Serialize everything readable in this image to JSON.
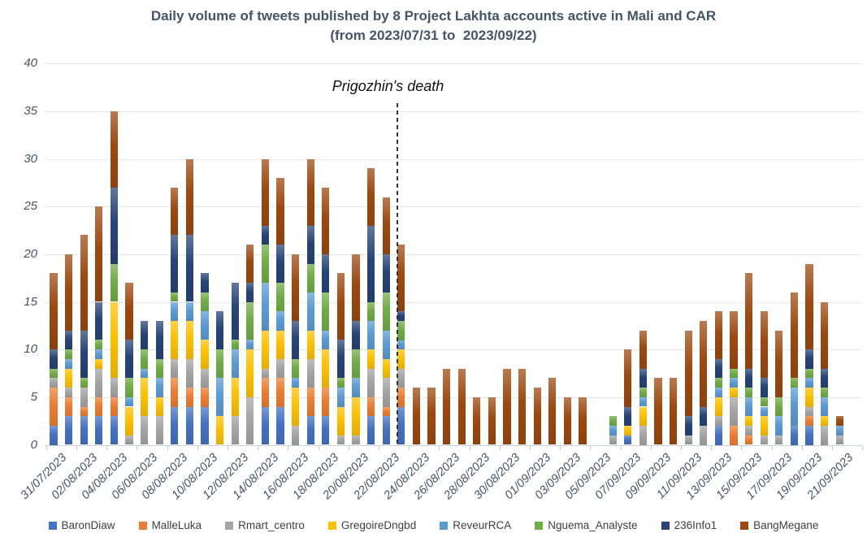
{
  "title": {
    "line1": "Daily volume of tweets published by 8 Project Lakhta accounts active in Mali and CAR",
    "line2": "(from 2023/07/31 to  2023/09/22)"
  },
  "annotation": {
    "text": "Prigozhin's death"
  },
  "chart_data": {
    "type": "bar",
    "stacked": true,
    "title": "Daily volume of tweets published by 8 Project Lakhta accounts active in Mali and CAR (from 2023/07/31 to 2023/09/22)",
    "ylabel": "",
    "xlabel": "",
    "ylim": [
      0,
      40
    ],
    "yticks": [
      0,
      5,
      10,
      15,
      20,
      25,
      30,
      35,
      40
    ],
    "grid": true,
    "legend_position": "bottom",
    "xtick_every": 2,
    "annotation": {
      "text": "Prigozhin's death",
      "after_category": "22/08/2023"
    },
    "categories": [
      "31/07/2023",
      "01/08/2023",
      "02/08/2023",
      "03/08/2023",
      "04/08/2023",
      "05/08/2023",
      "06/08/2023",
      "07/08/2023",
      "08/08/2023",
      "09/08/2023",
      "10/08/2023",
      "11/08/2023",
      "12/08/2023",
      "13/08/2023",
      "14/08/2023",
      "15/08/2023",
      "16/08/2023",
      "17/08/2023",
      "18/08/2023",
      "19/08/2023",
      "20/08/2023",
      "21/08/2023",
      "22/08/2023",
      "23/08/2023",
      "24/08/2023",
      "25/08/2023",
      "26/08/2023",
      "27/08/2023",
      "28/08/2023",
      "29/08/2023",
      "30/08/2023",
      "31/08/2023",
      "01/09/2023",
      "02/09/2023",
      "03/09/2023",
      "04/09/2023",
      "05/09/2023",
      "06/09/2023",
      "07/09/2023",
      "08/09/2023",
      "09/09/2023",
      "10/09/2023",
      "11/09/2023",
      "12/09/2023",
      "13/09/2023",
      "14/09/2023",
      "15/09/2023",
      "16/09/2023",
      "17/09/2023",
      "18/09/2023",
      "19/09/2023",
      "20/09/2023",
      "21/09/2023",
      "22/09/2023"
    ],
    "series": [
      {
        "name": "BaronDiaw",
        "color": "#4472C4",
        "values": [
          2,
          3,
          3,
          3,
          3,
          0,
          0,
          0,
          4,
          4,
          4,
          0,
          0,
          0,
          4,
          4,
          0,
          3,
          3,
          0,
          0,
          3,
          3,
          4,
          0,
          0,
          0,
          0,
          0,
          0,
          0,
          0,
          0,
          0,
          0,
          0,
          0,
          0,
          1,
          0,
          0,
          0,
          0,
          0,
          2,
          0,
          0,
          0,
          0,
          2,
          2,
          0,
          0,
          0
        ]
      },
      {
        "name": "MalleLuka",
        "color": "#ED7D31",
        "values": [
          4,
          2,
          1,
          2,
          2,
          0,
          0,
          0,
          3,
          2,
          2,
          0,
          0,
          0,
          3,
          3,
          0,
          3,
          3,
          0,
          0,
          2,
          1,
          2,
          0,
          0,
          0,
          0,
          0,
          0,
          0,
          0,
          0,
          0,
          0,
          0,
          0,
          0,
          0,
          0,
          0,
          0,
          0,
          0,
          0,
          2,
          1,
          0,
          0,
          0,
          1,
          0,
          0,
          0
        ]
      },
      {
        "name": "Rmart_centro",
        "color": "#A5A5A5",
        "values": [
          1,
          1,
          2,
          3,
          2,
          1,
          3,
          3,
          2,
          3,
          2,
          0,
          3,
          5,
          1,
          2,
          2,
          3,
          0,
          1,
          1,
          3,
          3,
          2,
          0,
          0,
          0,
          0,
          0,
          0,
          0,
          0,
          0,
          0,
          0,
          0,
          0,
          1,
          0,
          2,
          0,
          0,
          1,
          2,
          1,
          3,
          1,
          1,
          1,
          0,
          1,
          2,
          1,
          0
        ]
      },
      {
        "name": "GregoireDngbd",
        "color": "#FFC000",
        "values": [
          0,
          2,
          0,
          1,
          8,
          3,
          4,
          2,
          4,
          4,
          3,
          3,
          4,
          5,
          4,
          3,
          4,
          3,
          4,
          3,
          4,
          2,
          2,
          2,
          0,
          0,
          0,
          0,
          0,
          0,
          0,
          0,
          0,
          0,
          0,
          0,
          0,
          0,
          1,
          2,
          0,
          0,
          0,
          0,
          2,
          1,
          1,
          2,
          0,
          0,
          2,
          1,
          0,
          0
        ]
      },
      {
        "name": "ReveurRCA",
        "color": "#5B9BD5",
        "values": [
          0,
          1,
          0,
          1,
          0,
          1,
          1,
          2,
          2,
          2,
          3,
          4,
          3,
          1,
          5,
          2,
          1,
          4,
          2,
          2,
          2,
          3,
          3,
          1,
          0,
          0,
          0,
          0,
          0,
          0,
          0,
          0,
          0,
          0,
          0,
          0,
          0,
          1,
          0,
          1,
          0,
          0,
          0,
          0,
          1,
          1,
          2,
          1,
          2,
          4,
          1,
          2,
          1,
          0
        ]
      },
      {
        "name": "Nguema_Analyste",
        "color": "#70AD47",
        "values": [
          1,
          1,
          1,
          1,
          4,
          2,
          2,
          2,
          1,
          0,
          2,
          3,
          1,
          4,
          4,
          3,
          2,
          3,
          4,
          1,
          3,
          2,
          4,
          2,
          0,
          0,
          0,
          0,
          0,
          0,
          0,
          0,
          0,
          0,
          0,
          0,
          0,
          1,
          0,
          1,
          0,
          0,
          0,
          0,
          1,
          1,
          1,
          1,
          2,
          1,
          1,
          1,
          0,
          0
        ]
      },
      {
        "name": "236Info1",
        "color": "#264478",
        "values": [
          2,
          2,
          5,
          4,
          8,
          4,
          3,
          4,
          6,
          7,
          2,
          4,
          6,
          2,
          2,
          4,
          4,
          4,
          4,
          4,
          3,
          8,
          4,
          1,
          0,
          0,
          0,
          0,
          0,
          0,
          0,
          0,
          0,
          0,
          0,
          0,
          0,
          0,
          2,
          2,
          0,
          0,
          2,
          2,
          2,
          0,
          2,
          2,
          0,
          0,
          2,
          2,
          0,
          0
        ]
      },
      {
        "name": "BangMegane",
        "color": "#9E480E",
        "values": [
          8,
          8,
          10,
          10,
          8,
          6,
          0,
          0,
          5,
          8,
          0,
          0,
          0,
          4,
          7,
          7,
          7,
          7,
          7,
          7,
          7,
          6,
          6,
          7,
          6,
          6,
          8,
          8,
          5,
          5,
          8,
          8,
          6,
          7,
          5,
          5,
          0,
          0,
          6,
          4,
          7,
          7,
          9,
          9,
          5,
          6,
          10,
          7,
          7,
          9,
          9,
          7,
          1,
          0
        ]
      }
    ]
  }
}
